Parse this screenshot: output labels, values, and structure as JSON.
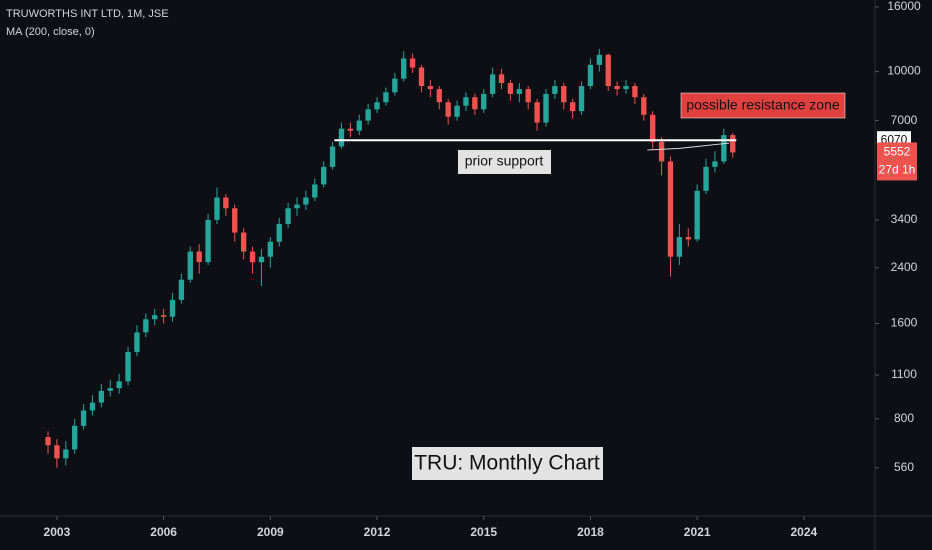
{
  "chart_data": {
    "type": "candlestick",
    "title": "TRUWORTHS INT LTD, 1M, JSE",
    "indicator": "MA (200, close, 0)",
    "log_scale": true,
    "up_color": "#26a69a",
    "down_color": "#ef5350",
    "xlim": [
      2001.4,
      2026.0
    ],
    "xticks": [
      2003,
      2006,
      2009,
      2012,
      2015,
      2018,
      2021,
      2024
    ],
    "ylim": [
      412,
      16830
    ],
    "yticks": [
      560,
      800,
      1100,
      1600,
      2400,
      3400,
      7000,
      10000,
      16000
    ],
    "x": [
      2002.75,
      2003.0,
      2003.25,
      2003.5,
      2003.75,
      2004.0,
      2004.25,
      2004.5,
      2004.75,
      2005.0,
      2005.25,
      2005.5,
      2005.75,
      2006.0,
      2006.25,
      2006.5,
      2006.75,
      2007.0,
      2007.25,
      2007.5,
      2007.75,
      2008.0,
      2008.25,
      2008.5,
      2008.75,
      2009.0,
      2009.25,
      2009.5,
      2009.75,
      2010.0,
      2010.25,
      2010.5,
      2010.75,
      2011.0,
      2011.25,
      2011.5,
      2011.75,
      2012.0,
      2012.25,
      2012.5,
      2012.75,
      2013.0,
      2013.25,
      2013.5,
      2013.75,
      2014.0,
      2014.25,
      2014.5,
      2014.75,
      2015.0,
      2015.25,
      2015.5,
      2015.75,
      2016.0,
      2016.25,
      2016.5,
      2016.75,
      2017.0,
      2017.25,
      2017.5,
      2017.75,
      2018.0,
      2018.25,
      2018.5,
      2018.75,
      2019.0,
      2019.25,
      2019.5,
      2019.75,
      2020.0,
      2020.25,
      2020.5,
      2020.75,
      2021.0,
      2021.25,
      2021.5,
      2021.75,
      2022.0
    ],
    "ohlc": [
      [
        700,
        730,
        620,
        660
      ],
      [
        660,
        690,
        560,
        600
      ],
      [
        600,
        680,
        570,
        640
      ],
      [
        640,
        800,
        620,
        760
      ],
      [
        760,
        890,
        740,
        850
      ],
      [
        850,
        950,
        820,
        900
      ],
      [
        900,
        1030,
        870,
        980
      ],
      [
        980,
        1060,
        940,
        1000
      ],
      [
        1000,
        1110,
        960,
        1050
      ],
      [
        1050,
        1350,
        1020,
        1300
      ],
      [
        1300,
        1580,
        1260,
        1500
      ],
      [
        1500,
        1720,
        1450,
        1650
      ],
      [
        1650,
        1780,
        1580,
        1700
      ],
      [
        1700,
        1780,
        1600,
        1680
      ],
      [
        1680,
        2000,
        1620,
        1900
      ],
      [
        1900,
        2300,
        1850,
        2200
      ],
      [
        2200,
        2800,
        2150,
        2700
      ],
      [
        2700,
        2850,
        2300,
        2500
      ],
      [
        2500,
        3550,
        2450,
        3400
      ],
      [
        3400,
        4300,
        3300,
        4000
      ],
      [
        4000,
        4100,
        3500,
        3700
      ],
      [
        3700,
        3800,
        2900,
        3100
      ],
      [
        3100,
        3200,
        2550,
        2700
      ],
      [
        2700,
        2800,
        2300,
        2500
      ],
      [
        2500,
        2750,
        2100,
        2600
      ],
      [
        2600,
        3000,
        2400,
        2900
      ],
      [
        2900,
        3450,
        2800,
        3300
      ],
      [
        3300,
        3850,
        3200,
        3700
      ],
      [
        3700,
        4000,
        3500,
        3800
      ],
      [
        3800,
        4200,
        3650,
        4000
      ],
      [
        4000,
        4600,
        3900,
        4400
      ],
      [
        4400,
        5200,
        4300,
        5000
      ],
      [
        5000,
        6000,
        4900,
        5800
      ],
      [
        5800,
        6900,
        5700,
        6600
      ],
      [
        6600,
        6900,
        6200,
        6500
      ],
      [
        6500,
        7300,
        6300,
        7000
      ],
      [
        7000,
        7900,
        6800,
        7600
      ],
      [
        7600,
        8300,
        7400,
        8000
      ],
      [
        8000,
        8900,
        7800,
        8600
      ],
      [
        8600,
        9900,
        8400,
        9500
      ],
      [
        9500,
        11600,
        9300,
        11000
      ],
      [
        11000,
        11400,
        9900,
        10300
      ],
      [
        10300,
        10500,
        8600,
        9000
      ],
      [
        9000,
        9400,
        8300,
        8800
      ],
      [
        8800,
        9000,
        7600,
        8000
      ],
      [
        8000,
        8200,
        6800,
        7200
      ],
      [
        7200,
        8100,
        7000,
        7800
      ],
      [
        7800,
        8600,
        7500,
        8300
      ],
      [
        8300,
        8500,
        7300,
        7600
      ],
      [
        7600,
        8800,
        7400,
        8500
      ],
      [
        8500,
        10300,
        8300,
        9800
      ],
      [
        9800,
        10200,
        8800,
        9200
      ],
      [
        9200,
        9400,
        8100,
        8500
      ],
      [
        8500,
        9200,
        8000,
        8800
      ],
      [
        8800,
        9000,
        7600,
        8000
      ],
      [
        8000,
        8200,
        6500,
        6900
      ],
      [
        6900,
        8800,
        6700,
        8500
      ],
      [
        8500,
        9400,
        8200,
        9000
      ],
      [
        9000,
        9200,
        7600,
        8000
      ],
      [
        8000,
        8200,
        7100,
        7500
      ],
      [
        7500,
        9300,
        7300,
        9000
      ],
      [
        9000,
        11000,
        8800,
        10500
      ],
      [
        10500,
        11800,
        10000,
        11300
      ],
      [
        11300,
        11400,
        8700,
        9000
      ],
      [
        9000,
        9300,
        8400,
        8800
      ],
      [
        8800,
        9400,
        8500,
        9000
      ],
      [
        9000,
        9200,
        7900,
        8300
      ],
      [
        8300,
        8500,
        7000,
        7300
      ],
      [
        7300,
        7500,
        5700,
        6000
      ],
      [
        6000,
        6200,
        4700,
        5200
      ],
      [
        5200,
        5400,
        2250,
        2600
      ],
      [
        2600,
        3300,
        2450,
        3000
      ],
      [
        3000,
        3200,
        2800,
        2950
      ],
      [
        2950,
        4400,
        2900,
        4200
      ],
      [
        4200,
        5300,
        4100,
        5000
      ],
      [
        5000,
        5600,
        4800,
        5200
      ],
      [
        5200,
        6600,
        5100,
        6300
      ],
      [
        6300,
        6400,
        5350,
        5552
      ]
    ],
    "ma": {
      "x": [
        2019.6,
        2020.5,
        2021.0,
        2021.5,
        2021.9
      ],
      "values": [
        5650,
        5720,
        5800,
        5880,
        5940
      ]
    },
    "support_line": {
      "x": [
        2010.8,
        2022.1
      ],
      "value": 6070
    },
    "countdown": "27d 1h",
    "annotations": [
      "possible resistance zone",
      "prior support",
      "TRU: Monthly Chart"
    ]
  }
}
